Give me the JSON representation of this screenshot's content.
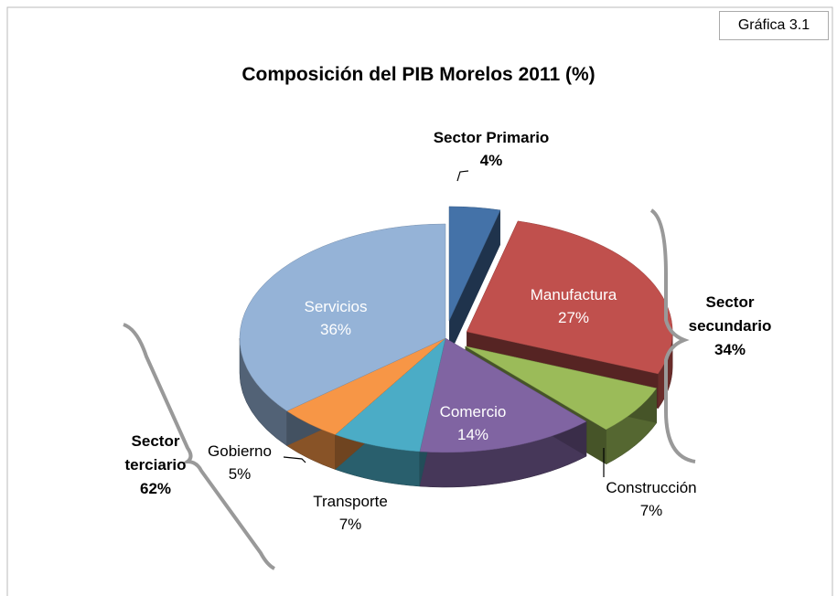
{
  "chart_data": {
    "type": "pie",
    "tag": "Gráfica 3.1",
    "title": "Composición del PIB Morelos 2011 (%)",
    "categories": [
      "Sector Primario",
      "Manufactura",
      "Construcción",
      "Comercio",
      "Transporte",
      "Gobierno",
      "Servicios"
    ],
    "values": [
      4,
      27,
      7,
      14,
      7,
      5,
      36
    ],
    "value_labels": [
      "4%",
      "27%",
      "7%",
      "14%",
      "7%",
      "5%",
      "36%"
    ],
    "colors": [
      "#4472a8",
      "#c0504d",
      "#9bbb59",
      "#8064a2",
      "#4bacc6",
      "#f79646",
      "#95b3d7"
    ],
    "groups": [
      {
        "label": "Sector secundario",
        "value": 34,
        "value_label": "34%"
      },
      {
        "label": "Sector terciario",
        "value": 62,
        "value_label": "62%"
      }
    ]
  }
}
